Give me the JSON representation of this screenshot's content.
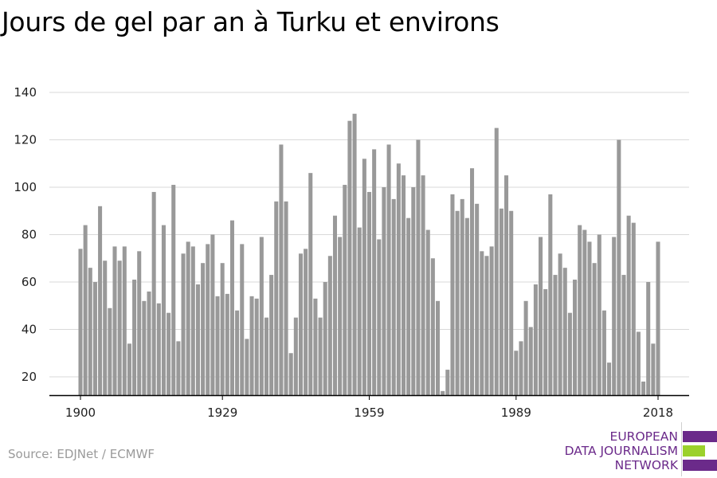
{
  "title": "Jours de gel par an à Turku et environs",
  "source": "Source: EDJNet / ECMWF",
  "logo": {
    "lines": [
      "EUROPEAN",
      "DATA JOURNALISM",
      "NETWORK"
    ],
    "colors": {
      "text": "#6b2a8a",
      "bar_purple": "#6b2a8a",
      "bar_green": "#9bd12c"
    }
  },
  "colors": {
    "bar": "#999999",
    "grid": "#d9d9d9",
    "axis": "#000000"
  },
  "chart_data": {
    "type": "bar",
    "title": "Jours de gel par an à Turku et environs",
    "xlabel": "",
    "ylabel": "",
    "x_start": 1900,
    "x_end": 2018,
    "ylim": [
      12,
      145
    ],
    "yticks": [
      20,
      40,
      60,
      80,
      100,
      120,
      140
    ],
    "xticks": [
      1900,
      1929,
      1959,
      1989,
      2018
    ],
    "grid": true,
    "values": [
      74,
      84,
      66,
      60,
      92,
      69,
      49,
      75,
      69,
      75,
      34,
      61,
      73,
      52,
      56,
      98,
      51,
      84,
      47,
      101,
      35,
      72,
      77,
      75,
      59,
      68,
      76,
      80,
      54,
      68,
      55,
      86,
      48,
      76,
      36,
      54,
      53,
      79,
      45,
      63,
      94,
      118,
      94,
      30,
      45,
      72,
      74,
      106,
      53,
      45,
      60,
      71,
      88,
      79,
      101,
      128,
      131,
      83,
      112,
      98,
      116,
      78,
      100,
      118,
      95,
      110,
      105,
      87,
      100,
      120,
      105,
      82,
      70,
      52,
      14,
      23,
      97,
      90,
      95,
      87,
      108,
      93,
      73,
      71,
      75,
      125,
      91,
      105,
      90,
      31,
      35,
      52,
      41,
      59,
      79,
      57,
      97,
      63,
      72,
      66,
      47,
      61,
      84,
      82,
      77,
      68,
      80,
      48,
      26,
      79,
      120,
      63,
      88,
      85,
      39,
      18,
      60,
      34,
      77
    ]
  }
}
